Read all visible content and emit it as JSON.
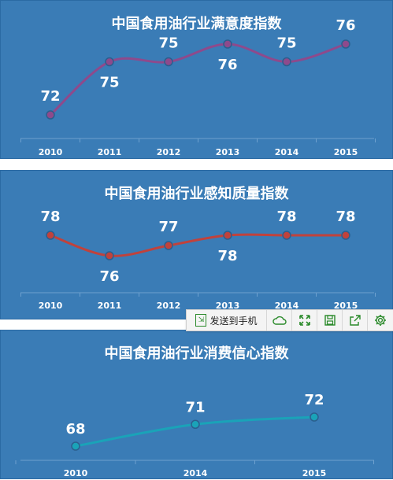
{
  "chart_data": [
    {
      "type": "line",
      "title": "中国食用油行业满意度指数",
      "categories": [
        "2010",
        "2011",
        "2012",
        "2013",
        "2014",
        "2015"
      ],
      "values": [
        72,
        75,
        75,
        76,
        75,
        76
      ],
      "color": "#8e4a8c",
      "grid": false
    },
    {
      "type": "line",
      "title": "中国食用油行业感知质量指数",
      "categories": [
        "2010",
        "2011",
        "2012",
        "2013",
        "2014",
        "2015"
      ],
      "values": [
        78,
        76,
        77,
        78,
        78,
        78
      ],
      "color": "#c0423c",
      "grid": false
    },
    {
      "type": "line",
      "title": "中国食用油行业消费信心指数",
      "categories": [
        "2010",
        "2014",
        "2015"
      ],
      "values": [
        68,
        71,
        72
      ],
      "color": "#1aa3b8",
      "grid": false
    }
  ],
  "toolbar": {
    "send_label": "发送到手机",
    "icons": [
      "phone-send-icon",
      "cloud-icon",
      "expand-icon",
      "save-icon",
      "share-icon",
      "gear-icon"
    ]
  },
  "colors": {
    "panel": "#3a7cb6",
    "text": "#ffffff"
  }
}
